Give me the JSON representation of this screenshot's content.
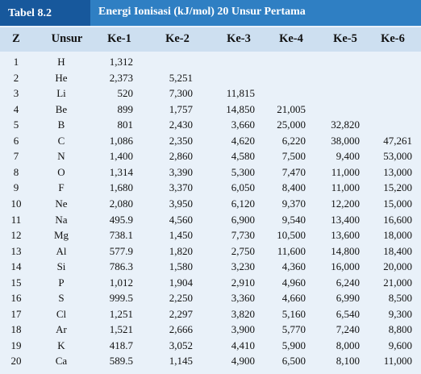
{
  "header": {
    "label": "Tabel 8.2",
    "title": "Energi Ionisasi (kJ/mol) 20 Unsur Pertama"
  },
  "table": {
    "columns": [
      "Z",
      "Unsur",
      "Ke-1",
      "Ke-2",
      "Ke-3",
      "Ke-4",
      "Ke-5",
      "Ke-6"
    ],
    "rows": [
      [
        "1",
        "H",
        "1,312"
      ],
      [
        "2",
        "He",
        "2,373",
        "5,251"
      ],
      [
        "3",
        "Li",
        "520",
        "7,300",
        "11,815"
      ],
      [
        "4",
        "Be",
        "899",
        "1,757",
        "14,850",
        "21,005"
      ],
      [
        "5",
        "B",
        "801",
        "2,430",
        "3,660",
        "25,000",
        "32,820"
      ],
      [
        "6",
        "C",
        "1,086",
        "2,350",
        "4,620",
        "6,220",
        "38,000",
        "47,261"
      ],
      [
        "7",
        "N",
        "1,400",
        "2,860",
        "4,580",
        "7,500",
        "9,400",
        "53,000"
      ],
      [
        "8",
        "O",
        "1,314",
        "3,390",
        "5,300",
        "7,470",
        "11,000",
        "13,000"
      ],
      [
        "9",
        "F",
        "1,680",
        "3,370",
        "6,050",
        "8,400",
        "11,000",
        "15,200"
      ],
      [
        "10",
        "Ne",
        "2,080",
        "3,950",
        "6,120",
        "9,370",
        "12,200",
        "15,000"
      ],
      [
        "11",
        "Na",
        "495.9",
        "4,560",
        "6,900",
        "9,540",
        "13,400",
        "16,600"
      ],
      [
        "12",
        "Mg",
        "738.1",
        "1,450",
        "7,730",
        "10,500",
        "13,600",
        "18,000"
      ],
      [
        "13",
        "Al",
        "577.9",
        "1,820",
        "2,750",
        "11,600",
        "14,800",
        "18,400"
      ],
      [
        "14",
        "Si",
        "786.3",
        "1,580",
        "3,230",
        "4,360",
        "16,000",
        "20,000"
      ],
      [
        "15",
        "P",
        "1,012",
        "1,904",
        "2,910",
        "4,960",
        "6,240",
        "21,000"
      ],
      [
        "16",
        "S",
        "999.5",
        "2,250",
        "3,360",
        "4,660",
        "6,990",
        "8,500"
      ],
      [
        "17",
        "Cl",
        "1,251",
        "2,297",
        "3,820",
        "5,160",
        "6,540",
        "9,300"
      ],
      [
        "18",
        "Ar",
        "1,521",
        "2,666",
        "3,900",
        "5,770",
        "7,240",
        "8,800"
      ],
      [
        "19",
        "K",
        "418.7",
        "3,052",
        "4,410",
        "5,900",
        "8,000",
        "9,600"
      ],
      [
        "20",
        "Ca",
        "589.5",
        "1,145",
        "4,900",
        "6,500",
        "8,100",
        "11,000"
      ]
    ]
  }
}
